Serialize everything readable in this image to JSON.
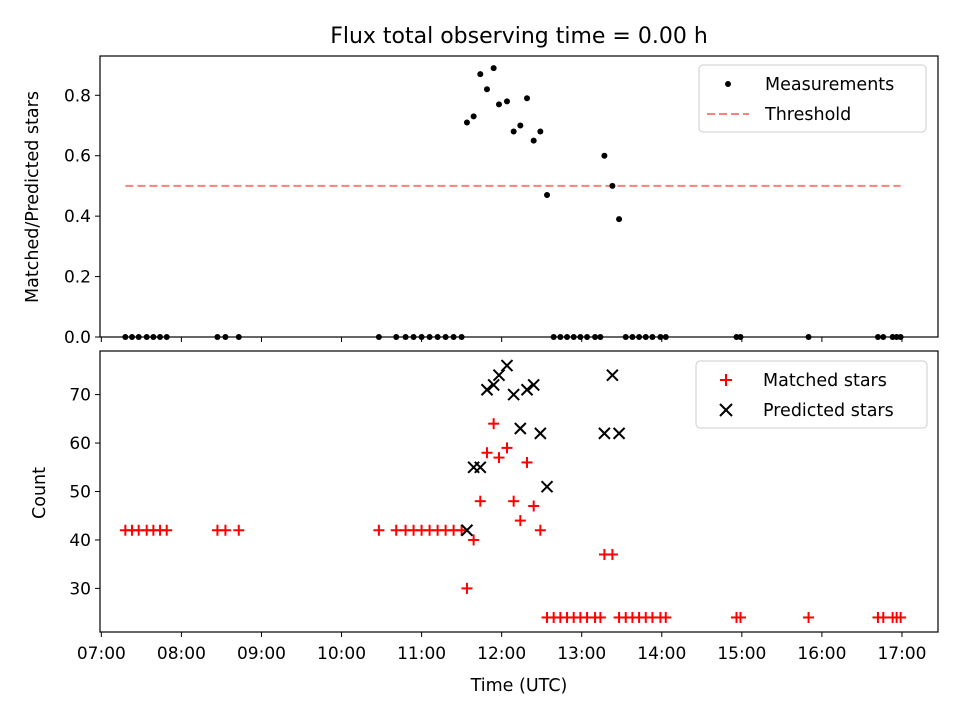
{
  "chart_data": [
    {
      "type": "scatter",
      "title": "Flux total observing time = 0.00 h",
      "xlabel": "",
      "ylabel": "Matched/Predicted stars",
      "xlim": [
        "06:59",
        "17:27"
      ],
      "ylim": [
        0,
        0.93
      ],
      "yticks": [
        "0.0",
        "0.2",
        "0.4",
        "0.6",
        "0.8"
      ],
      "ytick_values": [
        0,
        0.2,
        0.4,
        0.6,
        0.8
      ],
      "legend": "top-right",
      "colors": {
        "measurements": "#000000",
        "threshold": "#ff8080"
      },
      "series": [
        {
          "name": "Measurements",
          "marker": "dot",
          "points": [
            [
              "07:18",
              0
            ],
            [
              "07:23",
              0
            ],
            [
              "07:28",
              0
            ],
            [
              "07:34",
              0
            ],
            [
              "07:39",
              0
            ],
            [
              "07:44",
              0
            ],
            [
              "07:49",
              0
            ],
            [
              "08:27",
              0
            ],
            [
              "08:33",
              0
            ],
            [
              "08:43",
              0
            ],
            [
              "10:28",
              0
            ],
            [
              "10:41",
              0
            ],
            [
              "10:48",
              0
            ],
            [
              "10:54",
              0
            ],
            [
              "11:00",
              0
            ],
            [
              "11:06",
              0
            ],
            [
              "11:12",
              0
            ],
            [
              "11:18",
              0
            ],
            [
              "11:24",
              0
            ],
            [
              "11:30",
              0
            ],
            [
              "11:34",
              0.71
            ],
            [
              "11:39",
              0.73
            ],
            [
              "11:44",
              0.87
            ],
            [
              "11:49",
              0.82
            ],
            [
              "11:54",
              0.89
            ],
            [
              "11:58",
              0.77
            ],
            [
              "12:04",
              0.78
            ],
            [
              "12:09",
              0.68
            ],
            [
              "12:14",
              0.7
            ],
            [
              "12:19",
              0.79
            ],
            [
              "12:24",
              0.65
            ],
            [
              "12:29",
              0.68
            ],
            [
              "12:34",
              0.47
            ],
            [
              "12:39",
              0
            ],
            [
              "12:44",
              0
            ],
            [
              "12:49",
              0
            ],
            [
              "12:54",
              0
            ],
            [
              "12:59",
              0
            ],
            [
              "13:04",
              0
            ],
            [
              "13:10",
              0
            ],
            [
              "13:14",
              0
            ],
            [
              "13:17",
              0.6
            ],
            [
              "13:23",
              0.5
            ],
            [
              "13:28",
              0.39
            ],
            [
              "13:33",
              0
            ],
            [
              "13:38",
              0
            ],
            [
              "13:43",
              0
            ],
            [
              "13:48",
              0
            ],
            [
              "13:53",
              0
            ],
            [
              "13:59",
              0
            ],
            [
              "14:03",
              0
            ],
            [
              "14:56",
              0
            ],
            [
              "14:59",
              0
            ],
            [
              "15:50",
              0
            ],
            [
              "16:42",
              0
            ],
            [
              "16:46",
              0
            ],
            [
              "16:53",
              0
            ],
            [
              "16:56",
              0
            ],
            [
              "16:59",
              0
            ]
          ]
        },
        {
          "name": "Threshold",
          "style": "dashed-line",
          "points": [
            [
              "07:18",
              0.5
            ],
            [
              "16:59",
              0.5
            ]
          ]
        }
      ]
    },
    {
      "type": "scatter",
      "xlabel": "Time (UTC)",
      "ylabel": "Count",
      "xlim": [
        "06:59",
        "17:27"
      ],
      "ylim": [
        21,
        79
      ],
      "yticks": [
        "30",
        "40",
        "50",
        "60",
        "70"
      ],
      "ytick_values": [
        30,
        40,
        50,
        60,
        70
      ],
      "xticks": [
        "07:00",
        "08:00",
        "09:00",
        "10:00",
        "11:00",
        "12:00",
        "13:00",
        "14:00",
        "15:00",
        "16:00",
        "17:00"
      ],
      "legend": "top-right",
      "colors": {
        "matched": "#ff0000",
        "predicted": "#000000"
      },
      "series": [
        {
          "name": "Matched stars",
          "marker": "plus",
          "points": [
            [
              "07:18",
              42
            ],
            [
              "07:23",
              42
            ],
            [
              "07:28",
              42
            ],
            [
              "07:34",
              42
            ],
            [
              "07:39",
              42
            ],
            [
              "07:44",
              42
            ],
            [
              "07:49",
              42
            ],
            [
              "08:27",
              42
            ],
            [
              "08:33",
              42
            ],
            [
              "08:43",
              42
            ],
            [
              "10:28",
              42
            ],
            [
              "10:41",
              42
            ],
            [
              "10:48",
              42
            ],
            [
              "10:54",
              42
            ],
            [
              "11:00",
              42
            ],
            [
              "11:06",
              42
            ],
            [
              "11:12",
              42
            ],
            [
              "11:18",
              42
            ],
            [
              "11:24",
              42
            ],
            [
              "11:30",
              42
            ],
            [
              "11:34",
              30
            ],
            [
              "11:39",
              40
            ],
            [
              "11:44",
              48
            ],
            [
              "11:49",
              58
            ],
            [
              "11:54",
              64
            ],
            [
              "11:58",
              57
            ],
            [
              "12:04",
              59
            ],
            [
              "12:09",
              48
            ],
            [
              "12:14",
              44
            ],
            [
              "12:19",
              56
            ],
            [
              "12:24",
              47
            ],
            [
              "12:29",
              42
            ],
            [
              "12:34",
              24
            ],
            [
              "12:39",
              24
            ],
            [
              "12:44",
              24
            ],
            [
              "12:49",
              24
            ],
            [
              "12:54",
              24
            ],
            [
              "12:59",
              24
            ],
            [
              "13:04",
              24
            ],
            [
              "13:10",
              24
            ],
            [
              "13:14",
              24
            ],
            [
              "13:17",
              37
            ],
            [
              "13:23",
              37
            ],
            [
              "13:28",
              24
            ],
            [
              "13:33",
              24
            ],
            [
              "13:38",
              24
            ],
            [
              "13:43",
              24
            ],
            [
              "13:48",
              24
            ],
            [
              "13:53",
              24
            ],
            [
              "13:59",
              24
            ],
            [
              "14:03",
              24
            ],
            [
              "14:56",
              24
            ],
            [
              "14:59",
              24
            ],
            [
              "15:50",
              24
            ],
            [
              "16:42",
              24
            ],
            [
              "16:46",
              24
            ],
            [
              "16:53",
              24
            ],
            [
              "16:56",
              24
            ],
            [
              "16:59",
              24
            ]
          ]
        },
        {
          "name": "Predicted stars",
          "marker": "cross",
          "points": [
            [
              "11:34",
              42
            ],
            [
              "11:39",
              55
            ],
            [
              "11:44",
              55
            ],
            [
              "11:49",
              71
            ],
            [
              "11:54",
              72
            ],
            [
              "11:58",
              74
            ],
            [
              "12:04",
              76
            ],
            [
              "12:09",
              70
            ],
            [
              "12:14",
              63
            ],
            [
              "12:19",
              71
            ],
            [
              "12:24",
              72
            ],
            [
              "12:29",
              62
            ],
            [
              "12:34",
              51
            ],
            [
              "13:17",
              62
            ],
            [
              "13:23",
              74
            ],
            [
              "13:28",
              62
            ]
          ]
        }
      ]
    }
  ]
}
